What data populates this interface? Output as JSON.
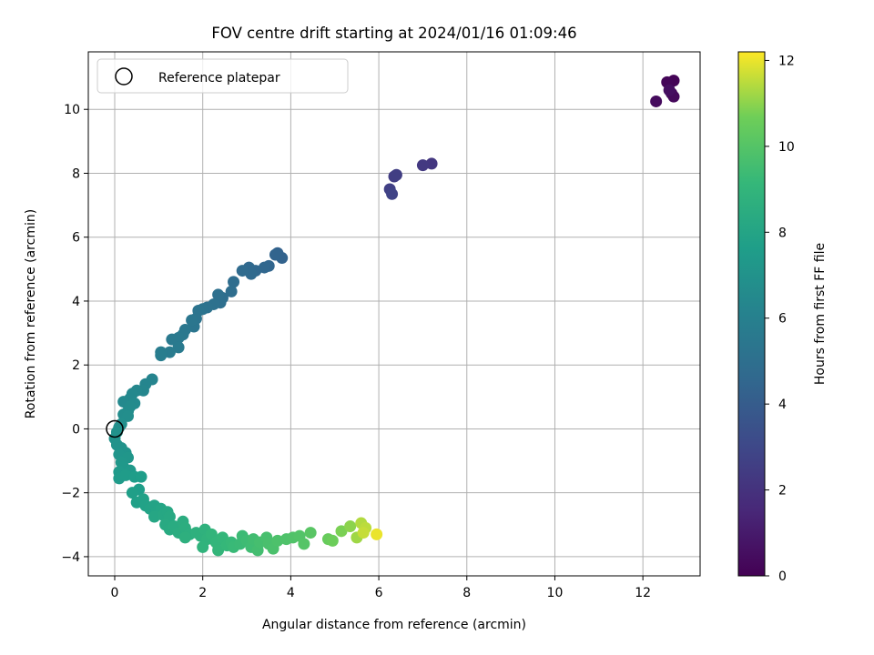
{
  "chart_data": {
    "type": "scatter",
    "title": "FOV centre drift starting at 2024/01/16 01:09:46",
    "xlabel": "Angular distance from reference (arcmin)",
    "ylabel": "Rotation from reference (arcmin)",
    "xlim": [
      -0.6,
      13.3
    ],
    "ylim": [
      -4.6,
      11.8
    ],
    "xticks": [
      0,
      2,
      4,
      6,
      8,
      10,
      12
    ],
    "yticks": [
      -4,
      -2,
      0,
      2,
      4,
      6,
      8,
      10
    ],
    "grid": true,
    "legend": {
      "position": "top-left",
      "entries": [
        "Reference platepar"
      ]
    },
    "reference_point": {
      "x": 0,
      "y": 0
    },
    "colorbar": {
      "label": "Hours from first FF file",
      "colormap": "viridis",
      "range": [
        0,
        12.2
      ],
      "ticks": [
        0,
        2,
        4,
        6,
        8,
        10,
        12
      ]
    },
    "color_variable": "hours",
    "points": [
      {
        "x": 12.6,
        "y": 10.8,
        "hours": 0.05
      },
      {
        "x": 12.7,
        "y": 10.9,
        "hours": 0.1
      },
      {
        "x": 12.55,
        "y": 10.85,
        "hours": 0.15
      },
      {
        "x": 12.65,
        "y": 10.5,
        "hours": 0.25
      },
      {
        "x": 12.7,
        "y": 10.4,
        "hours": 0.3
      },
      {
        "x": 12.3,
        "y": 10.25,
        "hours": 0.4
      },
      {
        "x": 12.6,
        "y": 10.6,
        "hours": 0.5
      },
      {
        "x": 7.2,
        "y": 8.3,
        "hours": 2.2
      },
      {
        "x": 7.0,
        "y": 8.25,
        "hours": 2.3
      },
      {
        "x": 6.35,
        "y": 7.9,
        "hours": 2.5
      },
      {
        "x": 6.4,
        "y": 7.95,
        "hours": 2.55
      },
      {
        "x": 6.25,
        "y": 7.5,
        "hours": 2.65
      },
      {
        "x": 6.3,
        "y": 7.35,
        "hours": 2.75
      },
      {
        "x": 3.7,
        "y": 5.5,
        "hours": 4.3
      },
      {
        "x": 3.8,
        "y": 5.35,
        "hours": 4.35
      },
      {
        "x": 3.65,
        "y": 5.45,
        "hours": 4.4
      },
      {
        "x": 3.5,
        "y": 5.1,
        "hours": 4.5
      },
      {
        "x": 3.4,
        "y": 5.05,
        "hours": 4.55
      },
      {
        "x": 3.2,
        "y": 4.95,
        "hours": 4.6
      },
      {
        "x": 3.05,
        "y": 5.05,
        "hours": 4.65
      },
      {
        "x": 3.1,
        "y": 4.85,
        "hours": 4.7
      },
      {
        "x": 2.9,
        "y": 4.95,
        "hours": 4.75
      },
      {
        "x": 2.7,
        "y": 4.6,
        "hours": 4.85
      },
      {
        "x": 2.65,
        "y": 4.3,
        "hours": 4.9
      },
      {
        "x": 2.45,
        "y": 4.1,
        "hours": 4.95
      },
      {
        "x": 2.4,
        "y": 3.95,
        "hours": 5.0
      },
      {
        "x": 2.35,
        "y": 4.2,
        "hours": 5.05
      },
      {
        "x": 2.25,
        "y": 3.9,
        "hours": 5.1
      },
      {
        "x": 2.1,
        "y": 3.8,
        "hours": 5.15
      },
      {
        "x": 2.0,
        "y": 3.75,
        "hours": 5.2
      },
      {
        "x": 1.9,
        "y": 3.7,
        "hours": 5.25
      },
      {
        "x": 1.85,
        "y": 3.45,
        "hours": 5.3
      },
      {
        "x": 1.8,
        "y": 3.2,
        "hours": 5.35
      },
      {
        "x": 1.75,
        "y": 3.4,
        "hours": 5.4
      },
      {
        "x": 1.6,
        "y": 3.1,
        "hours": 5.45
      },
      {
        "x": 1.55,
        "y": 2.95,
        "hours": 5.5
      },
      {
        "x": 1.45,
        "y": 2.85,
        "hours": 5.55
      },
      {
        "x": 1.3,
        "y": 2.8,
        "hours": 5.6
      },
      {
        "x": 1.45,
        "y": 2.55,
        "hours": 5.65
      },
      {
        "x": 1.25,
        "y": 2.4,
        "hours": 5.7
      },
      {
        "x": 1.05,
        "y": 2.4,
        "hours": 5.75
      },
      {
        "x": 1.05,
        "y": 2.3,
        "hours": 5.8
      },
      {
        "x": 0.85,
        "y": 1.55,
        "hours": 6.2
      },
      {
        "x": 0.7,
        "y": 1.4,
        "hours": 6.25
      },
      {
        "x": 0.65,
        "y": 1.2,
        "hours": 6.3
      },
      {
        "x": 0.5,
        "y": 1.2,
        "hours": 6.35
      },
      {
        "x": 0.4,
        "y": 1.1,
        "hours": 6.4
      },
      {
        "x": 0.35,
        "y": 0.95,
        "hours": 6.45
      },
      {
        "x": 0.2,
        "y": 0.85,
        "hours": 6.5
      },
      {
        "x": 0.45,
        "y": 0.8,
        "hours": 6.55
      },
      {
        "x": 0.35,
        "y": 0.7,
        "hours": 6.6
      },
      {
        "x": 0.3,
        "y": 0.55,
        "hours": 6.65
      },
      {
        "x": 0.2,
        "y": 0.45,
        "hours": 6.7
      },
      {
        "x": 0.3,
        "y": 0.4,
        "hours": 6.75
      },
      {
        "x": 0.15,
        "y": 0.15,
        "hours": 6.8
      },
      {
        "x": 0.1,
        "y": 0.05,
        "hours": 6.85
      },
      {
        "x": 0.05,
        "y": -0.1,
        "hours": 6.9
      },
      {
        "x": 0.0,
        "y": -0.3,
        "hours": 6.95
      },
      {
        "x": 0.05,
        "y": -0.5,
        "hours": 7.0
      },
      {
        "x": 0.15,
        "y": -0.6,
        "hours": 7.05
      },
      {
        "x": 0.25,
        "y": -0.75,
        "hours": 7.1
      },
      {
        "x": 0.1,
        "y": -0.8,
        "hours": 7.15
      },
      {
        "x": 0.3,
        "y": -0.9,
        "hours": 7.2
      },
      {
        "x": 0.15,
        "y": -1.05,
        "hours": 7.25
      },
      {
        "x": 0.2,
        "y": -1.2,
        "hours": 7.3
      },
      {
        "x": 0.35,
        "y": -1.3,
        "hours": 7.35
      },
      {
        "x": 0.1,
        "y": -1.35,
        "hours": 7.4
      },
      {
        "x": 0.1,
        "y": -1.55,
        "hours": 7.45
      },
      {
        "x": 0.25,
        "y": -1.45,
        "hours": 7.5
      },
      {
        "x": 0.45,
        "y": -1.5,
        "hours": 7.55
      },
      {
        "x": 0.6,
        "y": -1.5,
        "hours": 7.6
      },
      {
        "x": 0.55,
        "y": -1.9,
        "hours": 7.65
      },
      {
        "x": 0.4,
        "y": -2.0,
        "hours": 7.7
      },
      {
        "x": 0.5,
        "y": -2.3,
        "hours": 7.75
      },
      {
        "x": 0.65,
        "y": -2.2,
        "hours": 7.8
      },
      {
        "x": 0.7,
        "y": -2.4,
        "hours": 7.85
      },
      {
        "x": 0.8,
        "y": -2.5,
        "hours": 7.9
      },
      {
        "x": 0.9,
        "y": -2.4,
        "hours": 7.95
      },
      {
        "x": 0.95,
        "y": -2.6,
        "hours": 8.0
      },
      {
        "x": 1.05,
        "y": -2.5,
        "hours": 8.05
      },
      {
        "x": 0.9,
        "y": -2.75,
        "hours": 8.1
      },
      {
        "x": 1.1,
        "y": -2.7,
        "hours": 8.15
      },
      {
        "x": 1.2,
        "y": -2.6,
        "hours": 8.2
      },
      {
        "x": 1.25,
        "y": -2.75,
        "hours": 8.25
      },
      {
        "x": 1.15,
        "y": -3.0,
        "hours": 8.3
      },
      {
        "x": 1.25,
        "y": -3.15,
        "hours": 8.35
      },
      {
        "x": 1.35,
        "y": -3.05,
        "hours": 8.4
      },
      {
        "x": 1.45,
        "y": -3.25,
        "hours": 8.45
      },
      {
        "x": 1.55,
        "y": -2.9,
        "hours": 8.5
      },
      {
        "x": 1.6,
        "y": -3.1,
        "hours": 8.55
      },
      {
        "x": 1.7,
        "y": -3.3,
        "hours": 8.6
      },
      {
        "x": 1.6,
        "y": -3.4,
        "hours": 8.65
      },
      {
        "x": 1.85,
        "y": -3.25,
        "hours": 8.7
      },
      {
        "x": 1.95,
        "y": -3.35,
        "hours": 8.75
      },
      {
        "x": 2.05,
        "y": -3.15,
        "hours": 8.8
      },
      {
        "x": 2.1,
        "y": -3.45,
        "hours": 8.85
      },
      {
        "x": 2.0,
        "y": -3.7,
        "hours": 8.9
      },
      {
        "x": 2.2,
        "y": -3.3,
        "hours": 8.95
      },
      {
        "x": 2.3,
        "y": -3.55,
        "hours": 9.0
      },
      {
        "x": 2.35,
        "y": -3.8,
        "hours": 9.05
      },
      {
        "x": 2.45,
        "y": -3.4,
        "hours": 9.1
      },
      {
        "x": 2.55,
        "y": -3.65,
        "hours": 9.15
      },
      {
        "x": 2.65,
        "y": -3.55,
        "hours": 9.2
      },
      {
        "x": 2.7,
        "y": -3.7,
        "hours": 9.25
      },
      {
        "x": 2.85,
        "y": -3.6,
        "hours": 9.3
      },
      {
        "x": 2.9,
        "y": -3.35,
        "hours": 9.35
      },
      {
        "x": 3.0,
        "y": -3.5,
        "hours": 9.4
      },
      {
        "x": 3.1,
        "y": -3.7,
        "hours": 9.45
      },
      {
        "x": 3.15,
        "y": -3.45,
        "hours": 9.5
      },
      {
        "x": 3.25,
        "y": -3.8,
        "hours": 9.55
      },
      {
        "x": 3.3,
        "y": -3.55,
        "hours": 9.6
      },
      {
        "x": 3.45,
        "y": -3.4,
        "hours": 9.65
      },
      {
        "x": 3.5,
        "y": -3.6,
        "hours": 9.7
      },
      {
        "x": 3.6,
        "y": -3.75,
        "hours": 9.75
      },
      {
        "x": 3.7,
        "y": -3.5,
        "hours": 9.8
      },
      {
        "x": 3.9,
        "y": -3.45,
        "hours": 9.85
      },
      {
        "x": 4.05,
        "y": -3.4,
        "hours": 9.9
      },
      {
        "x": 4.2,
        "y": -3.35,
        "hours": 9.95
      },
      {
        "x": 4.3,
        "y": -3.6,
        "hours": 10.0
      },
      {
        "x": 4.45,
        "y": -3.25,
        "hours": 10.1
      },
      {
        "x": 4.85,
        "y": -3.45,
        "hours": 10.5
      },
      {
        "x": 4.95,
        "y": -3.5,
        "hours": 10.6
      },
      {
        "x": 5.15,
        "y": -3.2,
        "hours": 10.8
      },
      {
        "x": 5.35,
        "y": -3.05,
        "hours": 11.0
      },
      {
        "x": 5.5,
        "y": -3.4,
        "hours": 11.2
      },
      {
        "x": 5.6,
        "y": -2.95,
        "hours": 11.4
      },
      {
        "x": 5.7,
        "y": -3.1,
        "hours": 11.5
      },
      {
        "x": 5.65,
        "y": -3.25,
        "hours": 11.6
      },
      {
        "x": 5.95,
        "y": -3.3,
        "hours": 12.0
      }
    ]
  }
}
